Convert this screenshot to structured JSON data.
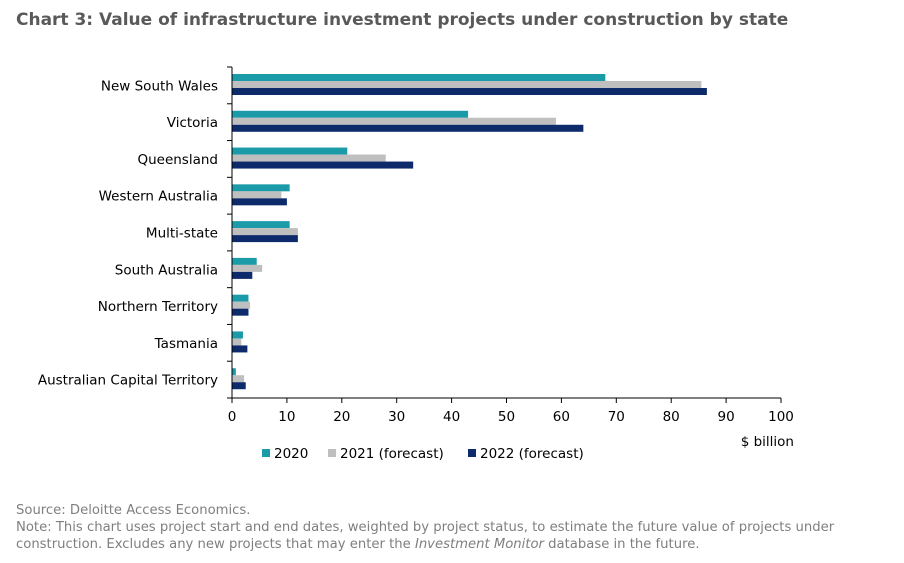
{
  "title": "Chart 3: Value of infrastructure investment projects under construction by state",
  "chart_data": {
    "type": "bar",
    "orientation": "horizontal",
    "categories": [
      "New South Wales",
      "Victoria",
      "Queensland",
      "Western Australia",
      "Multi-state",
      "South Australia",
      "Northern Territory",
      "Tasmania",
      "Australian Capital Territory"
    ],
    "series": [
      {
        "name": "2020",
        "color": "#1b9aa8",
        "values": [
          68,
          43,
          21,
          10.5,
          10.5,
          4.5,
          3,
          2,
          0.7
        ]
      },
      {
        "name": "2021 (forecast)",
        "color": "#bfbfbf",
        "values": [
          85.5,
          59,
          28,
          9,
          12,
          5.5,
          3.3,
          1.7,
          2.2
        ]
      },
      {
        "name": "2022 (forecast)",
        "color": "#0d2a6b",
        "values": [
          86.5,
          64,
          33,
          10,
          12,
          3.7,
          3,
          2.8,
          2.5
        ]
      }
    ],
    "xlim": [
      0,
      100
    ],
    "xticks": [
      "0",
      "10",
      "20",
      "30",
      "40",
      "50",
      "60",
      "70",
      "80",
      "90",
      "100"
    ],
    "xlabel": "$ billion",
    "legend_position": "bottom"
  },
  "footer": {
    "source": "Source: Deloitte Access Economics.",
    "note_line1": "Note: This chart uses project start and end dates, weighted by project status, to estimate the future value of projects under",
    "note_line2_pre": "construction. Excludes any new projects that may enter the ",
    "note_line2_italic": "Investment Monitor",
    "note_line2_post": " database in the future."
  }
}
